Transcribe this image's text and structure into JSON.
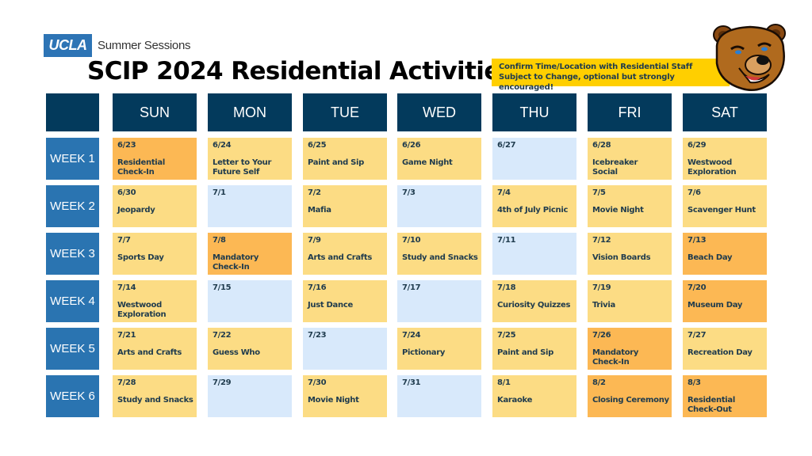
{
  "header": {
    "logo": "UCLA",
    "org": "Summer Sessions",
    "title": "SCIP 2024 Residential Activities",
    "notice_line1": "Confirm Time/Location with Residential Staff",
    "notice_line2": "Subject to Change, optional but strongly encouraged!",
    "mascot": "bruin-bear-mascot"
  },
  "colors": {
    "header_navy": "#033a5c",
    "week_blue": "#2a74b1",
    "activity_yellow": "#fcdc84",
    "important_orange": "#fcb854",
    "free_blue": "#d8e9fb",
    "notice_yellow": "#ffcf00",
    "text_navy": "#1f3b4d"
  },
  "days": [
    "SUN",
    "MON",
    "TUE",
    "WED",
    "THU",
    "FRI",
    "SAT"
  ],
  "weeks": [
    {
      "label": "WEEK 1",
      "cells": [
        {
          "date": "6/23",
          "activity": "Residential\nCheck-In",
          "type": "orange"
        },
        {
          "date": "6/24",
          "activity": "Letter to Your\nFuture Self",
          "type": "yellow"
        },
        {
          "date": "6/25",
          "activity": "Paint and Sip",
          "type": "yellow"
        },
        {
          "date": "6/26",
          "activity": "Game Night",
          "type": "yellow"
        },
        {
          "date": "6/27",
          "activity": "",
          "type": "blue"
        },
        {
          "date": "6/28",
          "activity": "Icebreaker\n  Social",
          "type": "yellow"
        },
        {
          "date": "6/29",
          "activity": "Westwood\nExploration",
          "type": "yellow"
        }
      ]
    },
    {
      "label": "WEEK 2",
      "cells": [
        {
          "date": "6/30",
          "activity": "Jeopardy",
          "type": "yellow"
        },
        {
          "date": "7/1",
          "activity": "",
          "type": "blue"
        },
        {
          "date": "7/2",
          "activity": "Mafia",
          "type": "yellow"
        },
        {
          "date": "7/3",
          "activity": "",
          "type": "blue"
        },
        {
          "date": "7/4",
          "activity": "4th of July Picnic",
          "type": "yellow"
        },
        {
          "date": "7/5",
          "activity": "Movie Night",
          "type": "yellow"
        },
        {
          "date": "7/6",
          "activity": "Scavenger Hunt",
          "type": "yellow"
        }
      ]
    },
    {
      "label": "WEEK 3",
      "cells": [
        {
          "date": "7/7",
          "activity": "Sports Day",
          "type": "yellow"
        },
        {
          "date": "7/8",
          "activity": "Mandatory\nCheck-In",
          "type": "orange"
        },
        {
          "date": "7/9",
          "activity": "Arts and Crafts",
          "type": "yellow"
        },
        {
          "date": "7/10",
          "activity": "Study and Snacks",
          "type": "yellow"
        },
        {
          "date": "7/11",
          "activity": "",
          "type": "blue"
        },
        {
          "date": "7/12",
          "activity": "Vision Boards",
          "type": "yellow"
        },
        {
          "date": "7/13",
          "activity": "Beach Day",
          "type": "orange"
        }
      ]
    },
    {
      "label": "WEEK 4",
      "cells": [
        {
          "date": "7/14",
          "activity": "Westwood\nExploration",
          "type": "yellow"
        },
        {
          "date": "7/15",
          "activity": "",
          "type": "blue"
        },
        {
          "date": "7/16",
          "activity": "Just Dance",
          "type": "yellow"
        },
        {
          "date": "7/17",
          "activity": "",
          "type": "blue"
        },
        {
          "date": "7/18",
          "activity": "Curiosity Quizzes",
          "type": "yellow"
        },
        {
          "date": "7/19",
          "activity": "Trivia",
          "type": "yellow"
        },
        {
          "date": "7/20",
          "activity": "Museum Day",
          "type": "orange"
        }
      ]
    },
    {
      "label": "WEEK 5",
      "cells": [
        {
          "date": "7/21",
          "activity": "Arts and Crafts",
          "type": "yellow"
        },
        {
          "date": "7/22",
          "activity": "Guess Who",
          "type": "yellow"
        },
        {
          "date": "7/23",
          "activity": "",
          "type": "blue"
        },
        {
          "date": "7/24",
          "activity": "Pictionary",
          "type": "yellow"
        },
        {
          "date": "7/25",
          "activity": "Paint and Sip",
          "type": "yellow"
        },
        {
          "date": "7/26",
          "activity": "Mandatory\nCheck-In",
          "type": "orange"
        },
        {
          "date": "7/27",
          "activity": "Recreation Day",
          "type": "yellow"
        }
      ]
    },
    {
      "label": "WEEK 6",
      "cells": [
        {
          "date": "7/28",
          "activity": "Study and Snacks",
          "type": "yellow"
        },
        {
          "date": "7/29",
          "activity": "",
          "type": "blue"
        },
        {
          "date": "7/30",
          "activity": "Movie Night",
          "type": "yellow"
        },
        {
          "date": "7/31",
          "activity": "",
          "type": "blue"
        },
        {
          "date": "8/1",
          "activity": "Karaoke",
          "type": "yellow"
        },
        {
          "date": "8/2",
          "activity": "Closing Ceremony",
          "type": "orange"
        },
        {
          "date": "8/3",
          "activity": "Residential\nCheck-Out",
          "type": "orange"
        }
      ]
    }
  ]
}
